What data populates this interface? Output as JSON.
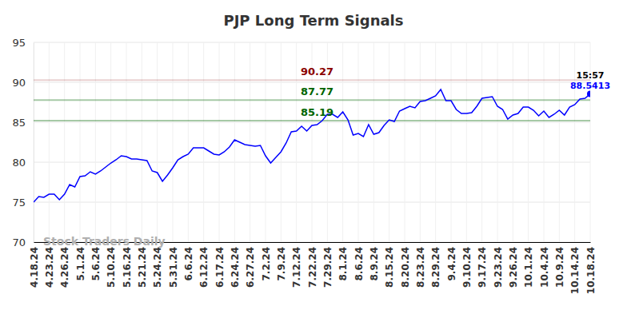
{
  "chart_data": {
    "type": "line",
    "title": "PJP Long Term Signals",
    "watermark": "Stock Traders Daily",
    "time_label": "15:57",
    "categories": [
      "4.18.24",
      null,
      null,
      "4.23.24",
      null,
      null,
      "4.26.24",
      null,
      null,
      "5.1.24",
      null,
      null,
      "5.6.24",
      null,
      null,
      "5.10.24",
      null,
      null,
      "5.16.24",
      null,
      null,
      "5.21.24",
      null,
      null,
      "5.24.24",
      null,
      null,
      "5.31.24",
      null,
      null,
      "6.6.24",
      null,
      null,
      "6.12.24",
      null,
      null,
      "6.17.24",
      null,
      null,
      "6.24.24",
      null,
      null,
      "6.27.24",
      null,
      null,
      "7.2.24",
      null,
      null,
      "7.9.24",
      null,
      null,
      "7.12.24",
      null,
      null,
      "7.22.24",
      null,
      null,
      "7.29.24",
      null,
      null,
      "8.1.24",
      null,
      null,
      "8.6.24",
      null,
      null,
      "8.9.24",
      null,
      null,
      "8.15.24",
      null,
      null,
      "8.20.24",
      null,
      null,
      "8.23.24",
      null,
      null,
      "8.29.24",
      null,
      null,
      "9.4.24",
      null,
      null,
      "9.10.24",
      null,
      null,
      "9.17.24",
      null,
      null,
      "9.23.24",
      null,
      null,
      "9.26.24",
      null,
      null,
      "10.1.24",
      null,
      null,
      "10.4.24",
      null,
      null,
      "10.9.24",
      null,
      null,
      "10.14.24",
      null,
      null,
      "10.18.24"
    ],
    "series": [
      {
        "color": "#0000ff",
        "values": [
          75.0,
          75.7,
          75.6,
          76.0,
          76.0,
          75.3,
          76.0,
          77.2,
          76.9,
          78.2,
          78.3,
          78.8,
          78.5,
          78.9,
          79.4,
          79.9,
          80.3,
          80.8,
          80.7,
          80.4,
          80.4,
          80.3,
          80.2,
          78.9,
          78.7,
          77.6,
          78.4,
          79.3,
          80.3,
          80.7,
          81.0,
          81.8,
          81.8,
          81.8,
          81.4,
          81.0,
          80.9,
          81.3,
          81.9,
          82.8,
          82.5,
          82.2,
          82.1,
          82.0,
          82.1,
          80.8,
          79.9,
          80.6,
          81.3,
          82.4,
          83.8,
          83.9,
          84.5,
          83.9,
          84.6,
          84.7,
          85.2,
          86.0,
          86.0,
          85.6,
          86.3,
          85.3,
          83.4,
          83.6,
          83.2,
          84.7,
          83.5,
          83.7,
          84.6,
          85.3,
          85.1,
          86.4,
          86.7,
          87.0,
          86.8,
          87.6,
          87.7,
          88.0,
          88.3,
          89.1,
          87.7,
          87.7,
          86.6,
          86.1,
          86.1,
          86.2,
          87.0,
          88.0,
          88.1,
          88.2,
          87.0,
          86.6,
          85.4,
          85.9,
          86.1,
          86.9,
          86.9,
          86.5,
          85.8,
          86.4,
          85.6,
          86.0,
          86.5,
          85.9,
          86.9,
          87.2,
          87.9,
          88.0,
          88.5413
        ]
      }
    ],
    "reference_lines": [
      {
        "value": 90.27,
        "color": "#8b0000"
      },
      {
        "value": 87.77,
        "color": "#006400"
      },
      {
        "value": 85.19,
        "color": "#006400"
      }
    ],
    "ylim": [
      70,
      95
    ],
    "yticks": [
      70,
      75,
      80,
      85,
      90,
      95
    ],
    "grid": true
  }
}
